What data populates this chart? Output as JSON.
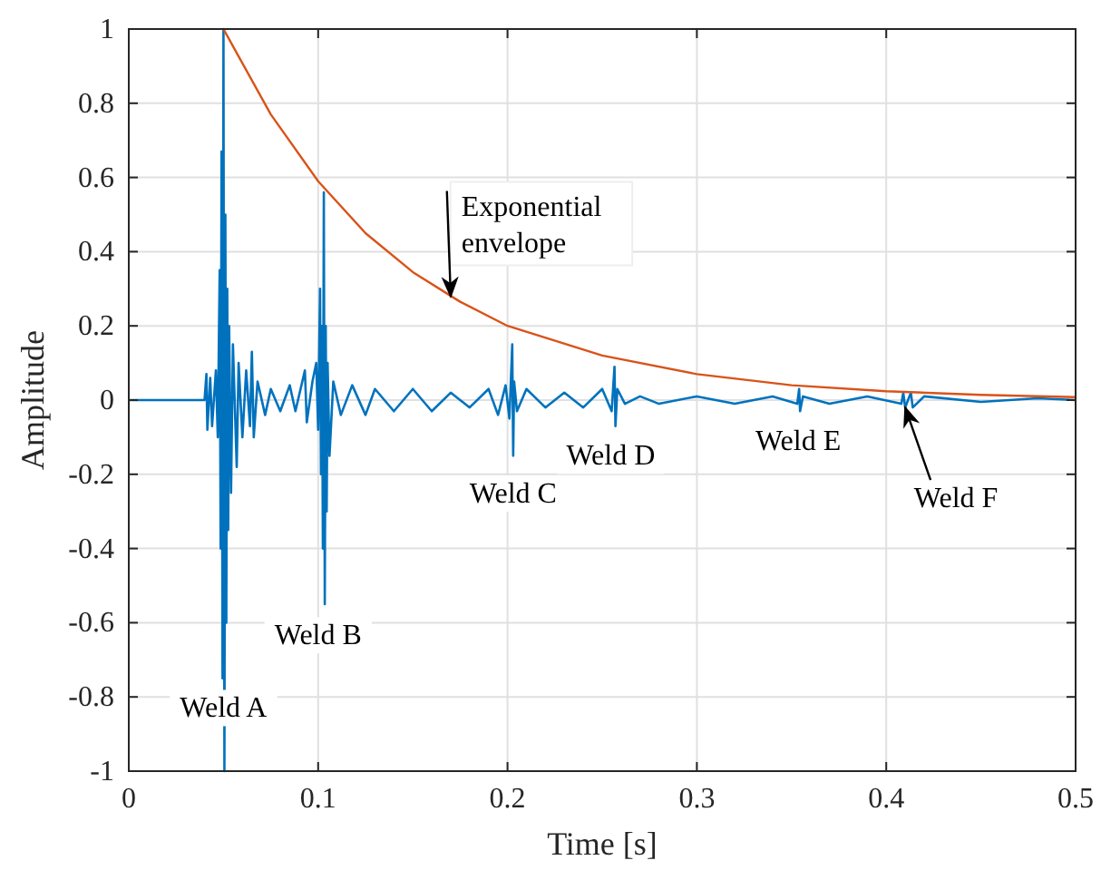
{
  "chart_data": {
    "type": "line",
    "xlabel": "Time [s]",
    "ylabel": "Amplitude",
    "xlim": [
      0,
      0.5
    ],
    "ylim": [
      -1,
      1
    ],
    "xticks": [
      0,
      0.1,
      0.2,
      0.3,
      0.4,
      0.5
    ],
    "yticks": [
      -1,
      -0.8,
      -0.6,
      -0.4,
      -0.2,
      0,
      0.2,
      0.4,
      0.6,
      0.8,
      1
    ],
    "grid": true,
    "line_style": "solid",
    "series": [
      {
        "color": "#0072bd",
        "x": [
          0,
          0.04,
          0.041,
          0.0415,
          0.043,
          0.044,
          0.046,
          0.047,
          0.048,
          0.0485,
          0.049,
          0.0495,
          0.05,
          0.0505,
          0.051,
          0.0515,
          0.052,
          0.0525,
          0.053,
          0.054,
          0.055,
          0.057,
          0.058,
          0.06,
          0.062,
          0.064,
          0.065,
          0.066,
          0.068,
          0.072,
          0.075,
          0.08,
          0.085,
          0.088,
          0.093,
          0.094,
          0.097,
          0.099,
          0.1,
          0.101,
          0.1015,
          0.102,
          0.1025,
          0.103,
          0.1035,
          0.104,
          0.1045,
          0.105,
          0.106,
          0.108,
          0.112,
          0.118,
          0.125,
          0.13,
          0.14,
          0.15,
          0.16,
          0.17,
          0.18,
          0.19,
          0.195,
          0.199,
          0.201,
          0.2025,
          0.203,
          0.2035,
          0.205,
          0.21,
          0.22,
          0.23,
          0.24,
          0.25,
          0.255,
          0.2565,
          0.257,
          0.258,
          0.262,
          0.27,
          0.28,
          0.3,
          0.32,
          0.34,
          0.353,
          0.354,
          0.3545,
          0.356,
          0.37,
          0.39,
          0.408,
          0.409,
          0.41,
          0.413,
          0.414,
          0.42,
          0.45,
          0.48,
          0.5
        ],
        "values": [
          0,
          0,
          0.07,
          -0.08,
          0.06,
          -0.07,
          0.08,
          -0.1,
          0.35,
          -0.4,
          0.67,
          -0.75,
          1,
          -1,
          0.5,
          -0.6,
          0.3,
          -0.35,
          0.2,
          -0.25,
          0.15,
          -0.18,
          0.1,
          -0.1,
          0.08,
          -0.07,
          0.13,
          -0.1,
          0.05,
          -0.04,
          0.03,
          -0.03,
          0.04,
          -0.03,
          0.08,
          -0.06,
          0.05,
          0.1,
          -0.08,
          0.3,
          -0.2,
          0.2,
          -0.4,
          0.56,
          -0.55,
          0.2,
          -0.3,
          0.1,
          -0.15,
          0.05,
          -0.04,
          0.04,
          -0.04,
          0.03,
          -0.03,
          0.03,
          -0.03,
          0.02,
          -0.02,
          0.03,
          -0.04,
          0.04,
          -0.05,
          0.15,
          -0.15,
          0.05,
          -0.03,
          0.03,
          -0.02,
          0.02,
          -0.02,
          0.03,
          -0.03,
          0.09,
          -0.07,
          0.03,
          -0.01,
          0.01,
          -0.01,
          0.01,
          -0.01,
          0.01,
          -0.01,
          0.03,
          -0.03,
          0.01,
          -0.01,
          0.01,
          -0.01,
          0.02,
          -0.02,
          0.02,
          -0.02,
          0.01,
          -0.005,
          0.005,
          0
        ]
      },
      {
        "color": "#d95319",
        "x": [
          0.05,
          0.075,
          0.1,
          0.125,
          0.15,
          0.175,
          0.2,
          0.25,
          0.3,
          0.35,
          0.4,
          0.45,
          0.5
        ],
        "values": [
          1,
          0.77,
          0.59,
          0.45,
          0.345,
          0.265,
          0.2,
          0.12,
          0.07,
          0.04,
          0.024,
          0.014,
          0.008
        ]
      }
    ],
    "annotations": [
      {
        "text": "Exponential envelope",
        "x": 0.17,
        "y": 0.28
      },
      "Weld A",
      "Weld B",
      "Weld C",
      "Weld D",
      "Weld E",
      {
        "text": "Weld F",
        "x": 0.41,
        "y": -0.02
      }
    ]
  }
}
